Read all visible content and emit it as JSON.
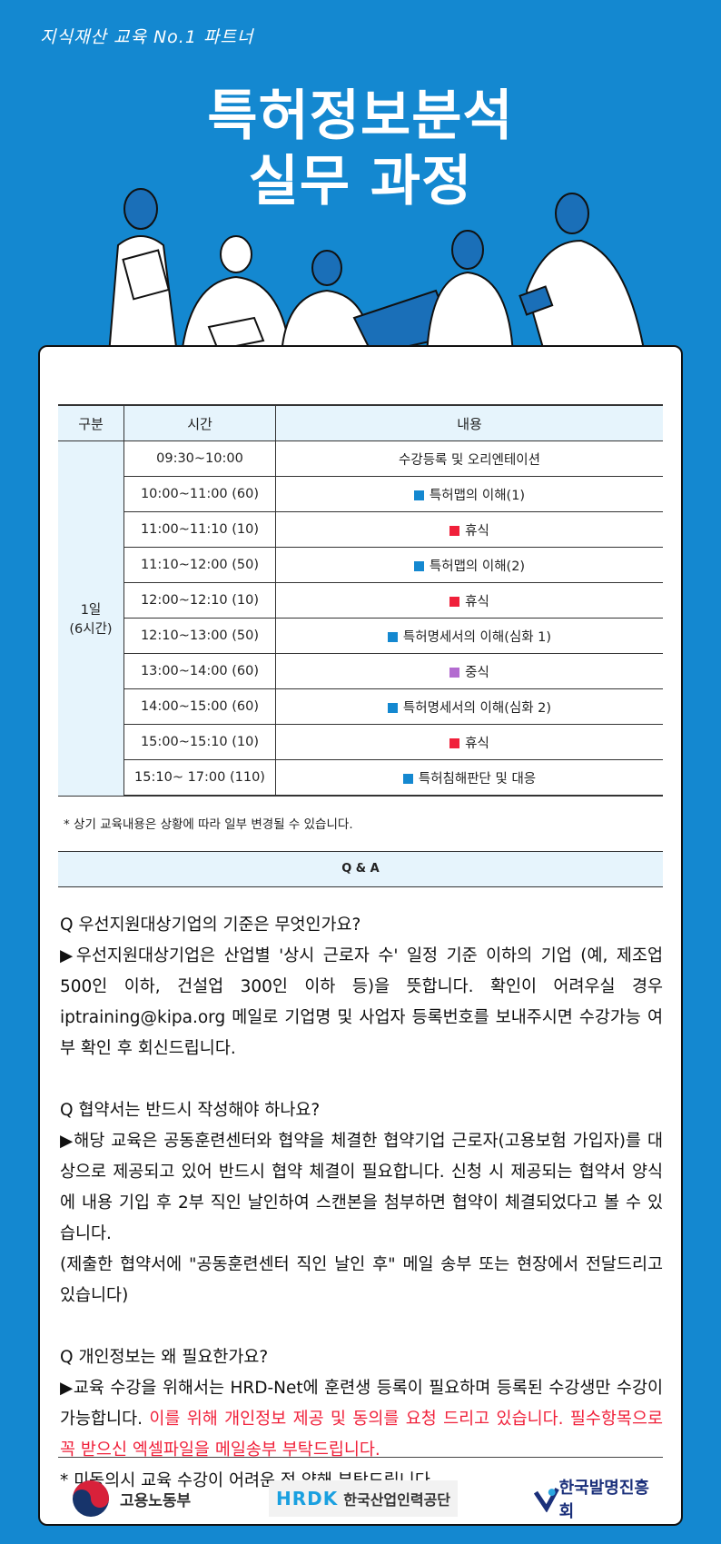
{
  "header": {
    "tagline": "지식재산 교육 No.1 파트너",
    "title_line1": "특허정보분석",
    "title_line2": "실무 과정"
  },
  "colors": {
    "background": "#1488d0",
    "lecture": "#1488d0",
    "break": "#f0203a",
    "lunch": "#b36bd0",
    "highlight_text": "#f0203a"
  },
  "schedule": {
    "headers": [
      "구분",
      "시간",
      "내용"
    ],
    "day_label": "1일",
    "day_hours": "(6시간)",
    "rows": [
      {
        "time": "09:30~10:00",
        "content": "수강등록 및 오리엔테이션",
        "type": "none"
      },
      {
        "time": "10:00~11:00 (60)",
        "content": "특허맵의 이해(1)",
        "type": "lecture"
      },
      {
        "time": "11:00~11:10 (10)",
        "content": "휴식",
        "type": "break"
      },
      {
        "time": "11:10~12:00 (50)",
        "content": "특허맵의 이해(2)",
        "type": "lecture"
      },
      {
        "time": "12:00~12:10 (10)",
        "content": "휴식",
        "type": "break"
      },
      {
        "time": "12:10~13:00 (50)",
        "content": "특허명세서의 이해(심화 1)",
        "type": "lecture"
      },
      {
        "time": "13:00~14:00 (60)",
        "content": "중식",
        "type": "lunch"
      },
      {
        "time": "14:00~15:00 (60)",
        "content": "특허명세서의 이해(심화 2)",
        "type": "lecture"
      },
      {
        "time": "15:00~15:10 (10)",
        "content": "휴식",
        "type": "break"
      },
      {
        "time": "15:10~ 17:00 (110)",
        "content": "특허침해판단 및 대응",
        "type": "lecture"
      }
    ],
    "note": "* 상기 교육내용은 상황에 따라 일부 변경될 수 있습니다."
  },
  "qa": {
    "title": "Q & A",
    "items": [
      {
        "q": "Q  우선지원대상기업의 기준은 무엇인가요?",
        "a": "▶우선지원대상기업은 산업별 '상시 근로자 수' 일정 기준 이하의 기업 (예, 제조업 500인 이하, 건설업 300인 이하 등)을 뜻합니다. 확인이 어려우실 경우  iptraining@kipa.org 메일로 기업명 및 사업자 등록번호를 보내주시면 수강가능 여부 확인 후 회신드립니다."
      },
      {
        "q": "Q 협약서는 반드시 작성해야 하나요?",
        "a": "▶해당 교육은 공동훈련센터와 협약을 체결한 협약기업 근로자(고용보험 가입자)를 대상으로 제공되고 있어 반드시 협약 체결이 필요합니다. 신청 시 제공되는 협약서 양식에 내용 기입 후 2부 직인 날인하여 스캔본을 첨부하면 협약이 체결되었다고 볼 수 있습니다.",
        "a2": "(제출한 협약서에 \"공동훈련센터 직인 날인 후\" 메일 송부 또는 현장에서 전달드리고 있습니다)"
      },
      {
        "q": "Q 개인정보는 왜 필요한가요?",
        "a": "▶교육 수강을 위해서는 HRD-Net에 훈련생 등록이 필요하며 등록된 수강생만 수강이 가능합니다. ",
        "a_red": "이를 위해 개인정보 제공 및 동의를 요청 드리고 있습니다. 필수항목으로 꼭 받으신 엑셀파일을 메일송부 부탁드립니다.",
        "a2": "* 미동의시 교육 수강이 어려운 점 양해 부탁드립니다"
      }
    ]
  },
  "footer": {
    "logos": [
      "고용노동부",
      "HRDK 한국산업인력공단",
      "한국발명진흥회"
    ],
    "hrdk_mark": "HRDK",
    "hrdk_name": "한국산업인력공단"
  }
}
